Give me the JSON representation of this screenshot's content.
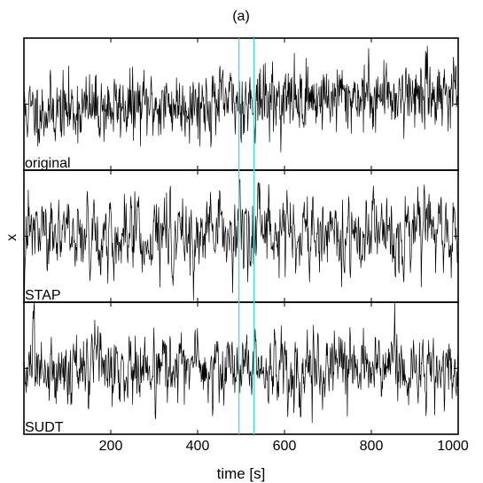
{
  "chart_data": {
    "type": "line",
    "title": "(a)",
    "xlabel": "time [s]",
    "ylabel": "x",
    "xlim": [
      0,
      1000
    ],
    "x_ticks": [
      200,
      400,
      600,
      800,
      1000
    ],
    "x_tick_labels": [
      "200",
      "400",
      "600",
      "800",
      "1000"
    ],
    "n_samples": 1000,
    "panels": [
      {
        "label": "original",
        "seed": 11,
        "smooth": 0.25,
        "trend": [
          -0.15,
          0.25
        ]
      },
      {
        "label": "STAP",
        "seed": 47,
        "smooth": 0.55,
        "trend": [
          0.0,
          0.0
        ]
      },
      {
        "label": "SUDT",
        "seed": 83,
        "smooth": 0.45,
        "trend": [
          0.0,
          0.0
        ]
      }
    ],
    "markers": {
      "x": [
        495,
        530
      ],
      "color": "#40e0d0"
    },
    "line_color": "#000000"
  }
}
